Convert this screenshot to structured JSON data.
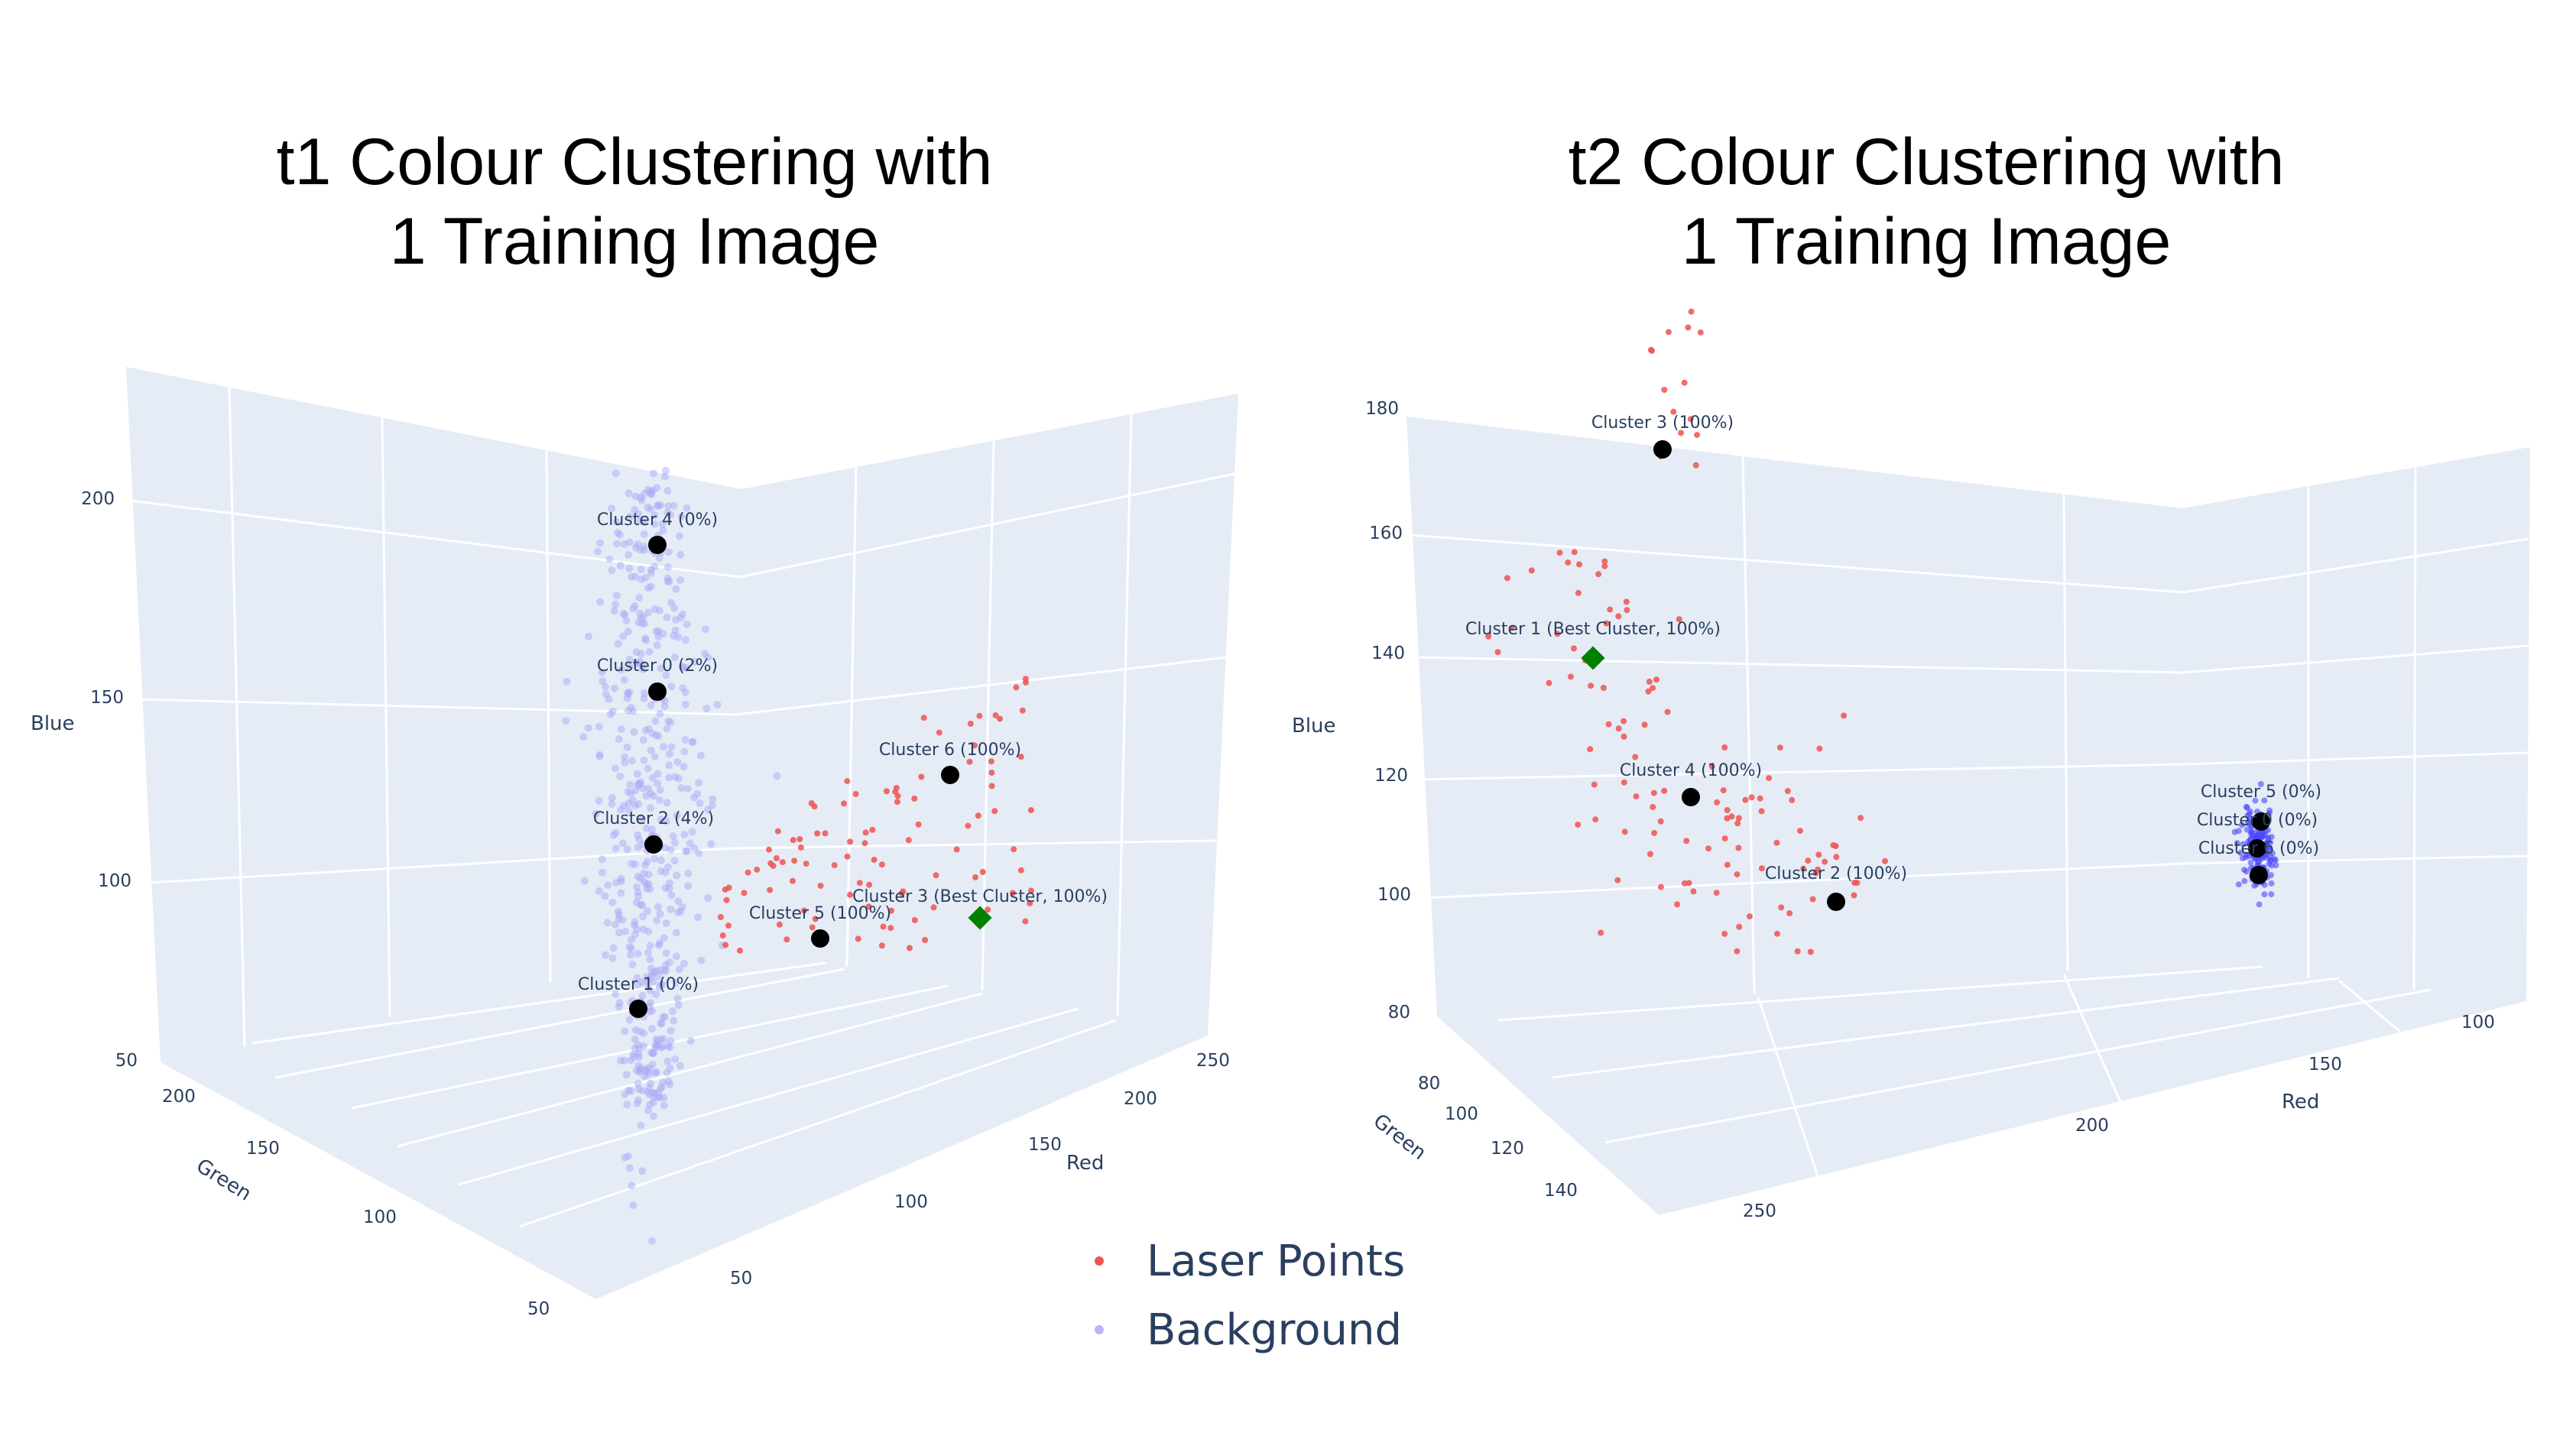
{
  "chart_data": [
    {
      "type": "scatter3d",
      "title_line1": "t1 Colour Clustering with",
      "title_line2": "1 Training Image",
      "axes": {
        "x": {
          "label": "Red",
          "ticks": [
            "100",
            "150",
            "200",
            "250"
          ]
        },
        "y": {
          "label": "Green",
          "ticks": [
            "50",
            "100",
            "150",
            "200"
          ]
        },
        "z": {
          "label": "Blue",
          "ticks": [
            "50",
            "100",
            "150",
            "200"
          ]
        }
      },
      "clusters": [
        {
          "label": "Cluster 4 (0%)",
          "best": false
        },
        {
          "label": "Cluster 0 (2%)",
          "best": false
        },
        {
          "label": "Cluster 6 (100%)",
          "best": false
        },
        {
          "label": "Cluster 2 (4%)",
          "best": false
        },
        {
          "label": "Cluster 3 (Best Cluster, 100%)",
          "best": true
        },
        {
          "label": "Cluster 5 (100%)",
          "best": false
        },
        {
          "label": "Cluster 1 (0%)",
          "best": false
        }
      ],
      "grid": true
    },
    {
      "type": "scatter3d",
      "title_line1": "t2 Colour Clustering with",
      "title_line2": "1 Training Image",
      "axes": {
        "x": {
          "label": "Red",
          "ticks": [
            "100",
            "150",
            "200",
            "250"
          ]
        },
        "y": {
          "label": "Green",
          "ticks": [
            "80",
            "100",
            "120",
            "140"
          ]
        },
        "z": {
          "label": "Blue",
          "ticks": [
            "80",
            "100",
            "120",
            "140",
            "160",
            "180"
          ]
        }
      },
      "clusters": [
        {
          "label": "Cluster 3 (100%)",
          "best": false
        },
        {
          "label": "Cluster 1 (Best Cluster, 100%)",
          "best": true
        },
        {
          "label": "Cluster 4 (100%)",
          "best": false
        },
        {
          "label": "Cluster 2 (100%)",
          "best": false
        },
        {
          "label": "Cluster 5 (0%)",
          "best": false
        },
        {
          "label": "Cluster 0 (0%)",
          "best": false
        },
        {
          "label": "Cluster 6 (0%)",
          "best": false
        }
      ],
      "grid": true
    }
  ],
  "legend": {
    "placement": "bottom-center",
    "items": [
      {
        "label": "Laser Points",
        "color": "#ef5350"
      },
      {
        "label": "Background",
        "color": "#b8b8f8"
      }
    ]
  },
  "colors": {
    "laser": "#ef5350",
    "background": "#a9a9f5",
    "centroid": "#000000",
    "best": "#008000",
    "pane": "#e5ecf6"
  }
}
